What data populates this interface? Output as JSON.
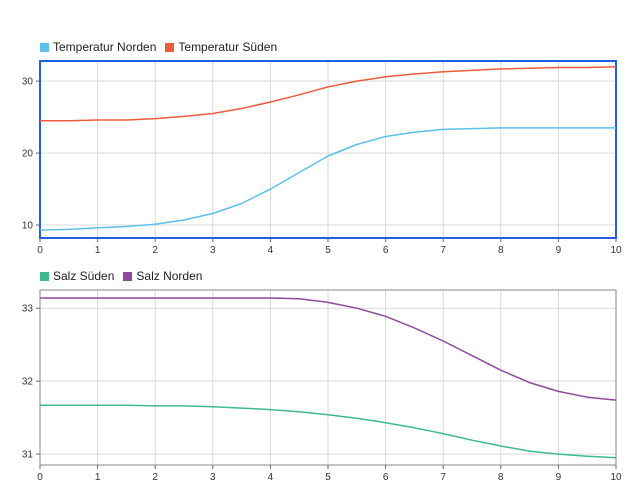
{
  "chart_data": [
    {
      "type": "line",
      "xlim": [
        0,
        10
      ],
      "ylim": [
        8.2,
        32.8
      ],
      "xticks": [
        "0",
        "1",
        "2",
        "3",
        "4",
        "5",
        "6",
        "7",
        "8",
        "9",
        "10"
      ],
      "yticks": [
        "10",
        "20",
        "30"
      ],
      "ytick_values": [
        10,
        20,
        30
      ],
      "grid": true,
      "legend_position": "top-left",
      "selected_border_color": "#1f5fe0",
      "series": [
        {
          "name": "Temperatur Norden",
          "color": "#5bc0eb",
          "x": [
            0,
            0.5,
            1,
            1.5,
            2,
            2.5,
            3,
            3.5,
            4,
            4.5,
            5,
            5.5,
            6,
            6.5,
            7,
            7.5,
            8,
            8.5,
            9,
            9.5,
            10
          ],
          "y": [
            9.3,
            9.4,
            9.6,
            9.8,
            10.1,
            10.7,
            11.6,
            13.0,
            15.0,
            17.3,
            19.6,
            21.2,
            22.3,
            22.9,
            23.3,
            23.4,
            23.5,
            23.5,
            23.5,
            23.5,
            23.5
          ]
        },
        {
          "name": "Temperatur Süden",
          "color": "#f05b3c",
          "x": [
            0,
            0.5,
            1,
            1.5,
            2,
            2.5,
            3,
            3.5,
            4,
            4.5,
            5,
            5.5,
            6,
            6.5,
            7,
            7.5,
            8,
            8.5,
            9,
            9.5,
            10
          ],
          "y": [
            24.5,
            24.5,
            24.6,
            24.6,
            24.8,
            25.1,
            25.5,
            26.2,
            27.1,
            28.1,
            29.2,
            30.0,
            30.6,
            31.0,
            31.3,
            31.5,
            31.7,
            31.8,
            31.9,
            31.9,
            32.0
          ]
        }
      ]
    },
    {
      "type": "line",
      "xlim": [
        0,
        10
      ],
      "ylim": [
        30.85,
        33.25
      ],
      "xticks": [
        "0",
        "1",
        "2",
        "3",
        "4",
        "5",
        "6",
        "7",
        "8",
        "9",
        "10"
      ],
      "yticks": [
        "31",
        "32",
        "33"
      ],
      "ytick_values": [
        31,
        32,
        33
      ],
      "grid": true,
      "legend_position": "top-left",
      "series": [
        {
          "name": "Salz Süden",
          "color": "#3dbb8f",
          "x": [
            0,
            0.5,
            1,
            1.5,
            2,
            2.5,
            3,
            3.5,
            4,
            4.5,
            5,
            5.5,
            6,
            6.5,
            7,
            7.5,
            8,
            8.5,
            9,
            9.5,
            10
          ],
          "y": [
            31.67,
            31.67,
            31.67,
            31.67,
            31.66,
            31.66,
            31.65,
            31.63,
            31.61,
            31.58,
            31.54,
            31.49,
            31.43,
            31.36,
            31.28,
            31.19,
            31.11,
            31.04,
            31.0,
            30.97,
            30.95
          ]
        },
        {
          "name": "Salz Norden",
          "color": "#8e4a9c",
          "x": [
            0,
            0.5,
            1,
            1.5,
            2,
            2.5,
            3,
            3.5,
            4,
            4.5,
            5,
            5.5,
            6,
            6.5,
            7,
            7.5,
            8,
            8.5,
            9,
            9.5,
            10
          ],
          "y": [
            33.14,
            33.14,
            33.14,
            33.14,
            33.14,
            33.14,
            33.14,
            33.14,
            33.14,
            33.13,
            33.08,
            33.0,
            32.89,
            32.73,
            32.55,
            32.35,
            32.15,
            31.98,
            31.86,
            31.78,
            31.74
          ]
        }
      ]
    }
  ]
}
